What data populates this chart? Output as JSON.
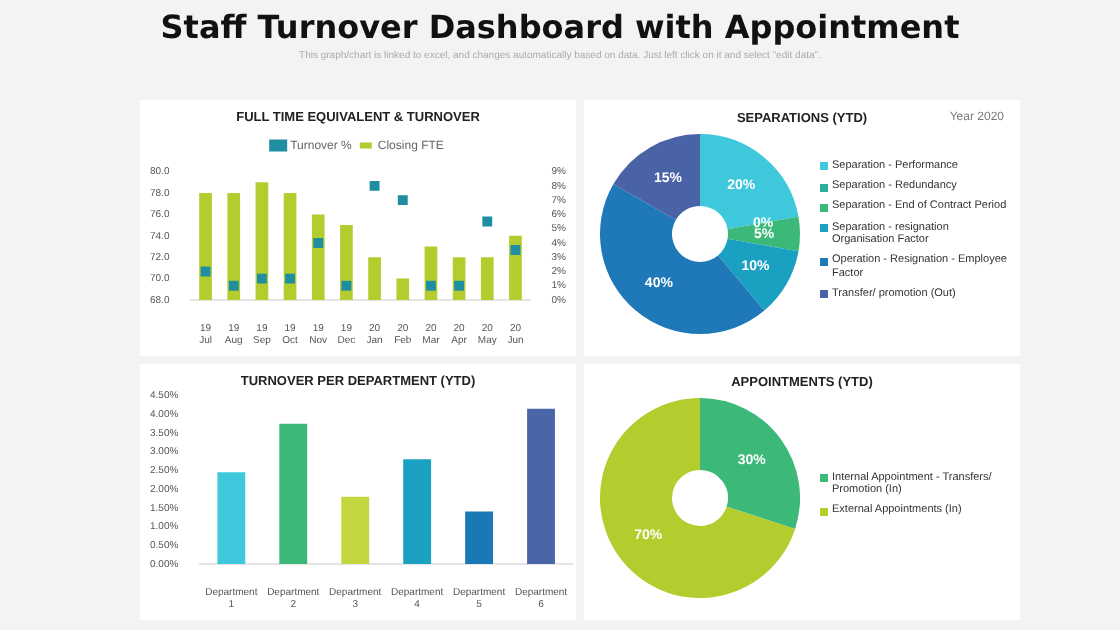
{
  "chart_data": [
    {
      "type": "other",
      "title": "Staff Turnover Dashboard with Appointment",
      "subtitle": "This graph/chart is linked to excel, and changes automatically based on data. Just left click on it and select \"edit data\"."
    },
    {
      "type": "bar",
      "title": "FULL TIME EQUIVALENT & TURNOVER",
      "categories": [
        "19 Jul",
        "19 Aug",
        "19 Sep",
        "19 Oct",
        "19 Nov",
        "19 Dec",
        "20 Jan",
        "20 Feb",
        "20 Mar",
        "20 Apr",
        "20 May",
        "20 Jun"
      ],
      "series": [
        {
          "name": "Closing FTE",
          "color": "#b5cc2e",
          "values": [
            78,
            78,
            79,
            78,
            76,
            75,
            72,
            70,
            73,
            72,
            72,
            74
          ]
        },
        {
          "name": "Turnover %",
          "type": "scatter",
          "axis": "y2",
          "color": "#1f8ea0",
          "values": [
            2,
            1,
            1.5,
            1.5,
            4,
            1,
            8,
            7,
            1,
            1,
            5.5,
            3.5
          ]
        }
      ],
      "ylim": [
        68,
        80
      ],
      "yticks": [
        {
          "value": 68,
          "label": "68.0"
        },
        {
          "value": 70,
          "label": "70.0"
        },
        {
          "value": 72,
          "label": "72.0"
        },
        {
          "value": 74,
          "label": "74.0"
        },
        {
          "value": 76,
          "label": "76.0"
        },
        {
          "value": 78,
          "label": "78.0"
        },
        {
          "value": 80,
          "label": "80.0"
        }
      ],
      "y2lim": [
        0,
        9
      ],
      "y2ticks": [
        {
          "value": 0,
          "label": "0%"
        },
        {
          "value": 1,
          "label": "1%"
        },
        {
          "value": 2,
          "label": "2%"
        },
        {
          "value": 3,
          "label": "3%"
        },
        {
          "value": 4,
          "label": "4%"
        },
        {
          "value": 5,
          "label": "5%"
        },
        {
          "value": 6,
          "label": "6%"
        },
        {
          "value": 7,
          "label": "7%"
        },
        {
          "value": 8,
          "label": "8%"
        },
        {
          "value": 9,
          "label": "9%"
        }
      ],
      "legend": "top",
      "marker": "square"
    },
    {
      "type": "donut",
      "title": "SEPARATIONS (YTD)",
      "subtitle": "Year 2020",
      "categories": [
        "Separation - Performance",
        "Separation - Redundancy",
        "Separation - End of Contract Period",
        "Separation - resignation Organisation Factor",
        "Operation - Resignation - Employee Factor",
        "Transfer/ promotion (Out)"
      ],
      "values": [
        20,
        0,
        5,
        10,
        40,
        15
      ],
      "colors": [
        "#3fc8dc",
        "#2bb0a0",
        "#3cb878",
        "#1aa0c0",
        "#1f78b8",
        "#4a62a6"
      ],
      "value_labels": [
        "20%",
        "0%",
        "5%",
        "10%",
        "40%",
        "15%"
      ],
      "legend": "right"
    },
    {
      "type": "bar",
      "title": "TURNOVER PER DEPARTMENT (YTD)",
      "categories": [
        "Department 1",
        "Department 2",
        "Department 3",
        "Department 4",
        "Department 5",
        "Department 6"
      ],
      "values": [
        2.45,
        3.75,
        1.8,
        2.8,
        1.4,
        4.15
      ],
      "colors": [
        "#3fc8dc",
        "#3cb878",
        "#c3d640",
        "#1aa0c0",
        "#1a78b5",
        "#4a66a8"
      ],
      "ylim": [
        0,
        4.5
      ],
      "yticks": [
        {
          "value": 0,
          "label": "0.00%"
        },
        {
          "value": 0.5,
          "label": "0.50%"
        },
        {
          "value": 1,
          "label": "1.00%"
        },
        {
          "value": 1.5,
          "label": "1.50%"
        },
        {
          "value": 2,
          "label": "2.00%"
        },
        {
          "value": 2.5,
          "label": "2.50%"
        },
        {
          "value": 3,
          "label": "3.00%"
        },
        {
          "value": 3.5,
          "label": "3.50%"
        },
        {
          "value": 4,
          "label": "4.00%"
        },
        {
          "value": 4.5,
          "label": "4.50%"
        }
      ]
    },
    {
      "type": "donut",
      "title": "APPOINTMENTS (YTD)",
      "categories": [
        "Internal Appointment - Transfers/ Promotion (In)",
        "External Appointments (In)"
      ],
      "values": [
        30,
        70
      ],
      "colors": [
        "#3cb878",
        "#b5cc2e"
      ],
      "value_labels": [
        "30%",
        "70%"
      ],
      "legend": "right"
    }
  ]
}
